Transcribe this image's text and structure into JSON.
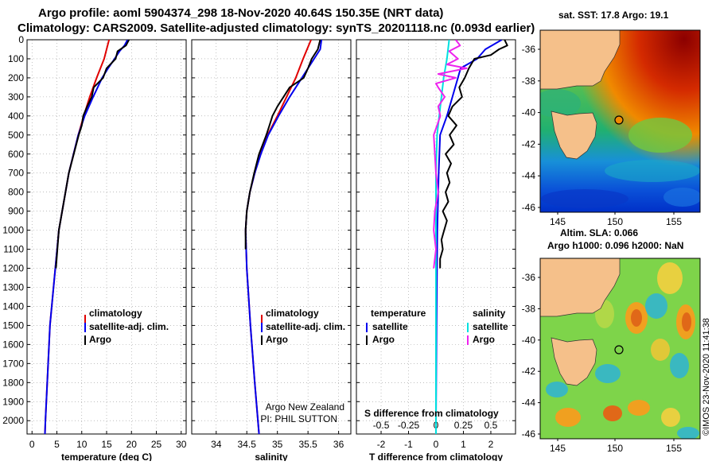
{
  "header": {
    "title_line1": "Argo profile: aoml 5904374_298 18-Nov-2020 40.64S 150.35E (NRT data)",
    "title_line2": "Climatology: CARS2009. Satellite-adjusted climatology: synTS_20201118.nc (0.093d earlier)"
  },
  "colors": {
    "argo": "#000000",
    "climatology": "#e00000",
    "satellite": "#0000ee",
    "satellite_salinity": "#00e0e0",
    "argo_salinity": "#ee22ee",
    "land": "#f5c08a"
  },
  "depth_ticks": [
    "0",
    "100",
    "200",
    "300",
    "400",
    "500",
    "600",
    "700",
    "800",
    "900",
    "1000",
    "1100",
    "1200",
    "1300",
    "1400",
    "1500",
    "1600",
    "1700",
    "1800",
    "1900",
    "2000"
  ],
  "chart_data": [
    {
      "type": "line",
      "title": "Temperature profile",
      "xlabel": "temperature (deg C)",
      "ylabel": "depth",
      "xlim": [
        -1,
        31
      ],
      "ylim": [
        2070,
        0
      ],
      "x_ticks": [
        "0",
        "5",
        "10",
        "15",
        "20",
        "25",
        "30"
      ],
      "x_tick_values": [
        0,
        5,
        10,
        15,
        20,
        25,
        30
      ],
      "legend": {
        "climatology": "climatology",
        "satellite": "satellite-adj. clim.",
        "argo": "Argo"
      },
      "series": [
        {
          "name": "climatology",
          "depth": [
            0,
            100,
            200,
            300,
            400,
            500,
            700,
            1000,
            1500,
            2000,
            2070
          ],
          "values": [
            15.5,
            14.5,
            13.0,
            11.6,
            10.4,
            9.3,
            7.4,
            5.4,
            3.6,
            2.7,
            2.6
          ]
        },
        {
          "name": "satellite-adj. clim.",
          "depth": [
            0,
            30,
            60,
            100,
            150,
            200,
            300,
            400,
            500,
            700,
            1000,
            1500,
            2000,
            2070
          ],
          "values": [
            19.2,
            18.6,
            17.6,
            16.6,
            15.3,
            14.1,
            12.3,
            10.6,
            9.3,
            7.4,
            5.4,
            3.6,
            2.7,
            2.6
          ]
        },
        {
          "name": "Argo",
          "depth": [
            0,
            30,
            60,
            100,
            150,
            200,
            250,
            300,
            350,
            400,
            450,
            500,
            700,
            1000,
            1200
          ],
          "values": [
            19.5,
            18.9,
            17.2,
            16.8,
            15.0,
            14.3,
            12.4,
            12.0,
            11.1,
            10.3,
            10.0,
            9.4,
            7.4,
            5.4,
            4.8
          ]
        }
      ]
    },
    {
      "type": "line",
      "title": "Salinity profile",
      "xlabel": "salinity",
      "ylabel": "depth",
      "xlim": [
        33.6,
        36.2
      ],
      "ylim": [
        2070,
        0
      ],
      "x_ticks": [
        "34",
        "34.5",
        "35",
        "35.5",
        "36"
      ],
      "x_tick_values": [
        34,
        34.5,
        35,
        35.5,
        36
      ],
      "legend": {
        "climatology": "climatology",
        "satellite": "satellite-adj. clim.",
        "argo": "Argo"
      },
      "credit_line1": "Argo New Zealand",
      "credit_line2": "PI: PHIL SUTTON",
      "series": [
        {
          "name": "climatology",
          "depth": [
            0,
            100,
            200,
            300,
            400,
            500,
            600,
            700,
            800,
            900,
            1000,
            1200,
            1500,
            1800,
            2070
          ],
          "values": [
            35.55,
            35.42,
            35.3,
            35.15,
            35.0,
            34.84,
            34.72,
            34.63,
            34.55,
            34.5,
            34.48,
            34.5,
            34.56,
            34.63,
            34.7
          ]
        },
        {
          "name": "satellite-adj. clim.",
          "depth": [
            0,
            50,
            100,
            200,
            300,
            400,
            500,
            600,
            700,
            800,
            900,
            1000,
            1200,
            1500,
            1800,
            2070
          ],
          "values": [
            35.72,
            35.7,
            35.6,
            35.4,
            35.2,
            35.02,
            34.85,
            34.73,
            34.63,
            34.55,
            34.5,
            34.48,
            34.5,
            34.56,
            34.63,
            34.7
          ]
        },
        {
          "name": "Argo",
          "depth": [
            0,
            50,
            100,
            150,
            200,
            250,
            300,
            350,
            400,
            450,
            500,
            600,
            700,
            800,
            900,
            1000,
            1100
          ],
          "values": [
            35.7,
            35.66,
            35.56,
            35.5,
            35.43,
            35.2,
            35.1,
            35.0,
            34.92,
            34.87,
            34.82,
            34.7,
            34.62,
            34.55,
            34.5,
            34.48,
            34.48
          ]
        }
      ]
    },
    {
      "type": "line",
      "title": "Difference from climatology",
      "xlabel": "T difference from climatology",
      "xlabel_top": "S difference from climatology",
      "ylabel": "depth",
      "xlim": [
        -2.9,
        2.9
      ],
      "ylim": [
        2070,
        0
      ],
      "x_ticks": [
        "-2",
        "-1",
        "0",
        "1",
        "2"
      ],
      "x_tick_values": [
        -2,
        -1,
        0,
        1,
        2
      ],
      "x_ticks_top": [
        "-0.5",
        "-0.25",
        "0",
        "0.25",
        "0.5"
      ],
      "legend": {
        "temperature": "temperature",
        "salinity": "salinity",
        "satellite": "satellite",
        "argo": "Argo"
      },
      "series": [
        {
          "name": "temperature satellite",
          "depth": [
            0,
            50,
            100,
            150,
            200,
            300,
            400,
            500,
            700,
            1000,
            1500,
            2000,
            2070
          ],
          "values": [
            2.4,
            1.8,
            1.5,
            0.9,
            0.8,
            0.6,
            0.4,
            0.15,
            0.1,
            0.05,
            0.02,
            0.0,
            0.0
          ]
        },
        {
          "name": "temperature Argo",
          "depth": [
            0,
            30,
            50,
            80,
            100,
            150,
            200,
            250,
            300,
            350,
            400,
            450,
            500,
            550,
            600,
            650,
            700,
            750,
            800,
            850,
            900,
            950,
            1000,
            1050,
            1100,
            1150,
            1200
          ],
          "values": [
            2.5,
            2.6,
            2.3,
            2.0,
            1.4,
            1.2,
            1.05,
            0.85,
            0.95,
            0.6,
            0.45,
            0.75,
            0.5,
            0.65,
            0.35,
            0.55,
            0.4,
            0.5,
            0.35,
            0.45,
            0.25,
            0.4,
            0.3,
            0.2,
            0.25,
            0.15,
            0.15
          ]
        },
        {
          "name": "salinity satellite",
          "depth": [
            0,
            100,
            200,
            300,
            400,
            500,
            700,
            1000,
            1500,
            2000,
            2070
          ],
          "values": [
            0.12,
            0.1,
            0.07,
            0.05,
            0.03,
            0.01,
            0.0,
            0.0,
            0.0,
            0.0,
            0.0
          ]
        },
        {
          "name": "salinity Argo",
          "depth": [
            0,
            30,
            60,
            100,
            130,
            150,
            180,
            200,
            230,
            250,
            300,
            350,
            400,
            450,
            500,
            600,
            700,
            800,
            900,
            1000,
            1100,
            1200
          ],
          "values": [
            0.18,
            0.22,
            0.12,
            0.2,
            0.1,
            0.28,
            0.02,
            0.18,
            0.0,
            0.02,
            0.08,
            0.02,
            0.04,
            0.01,
            -0.02,
            -0.01,
            0.0,
            0.02,
            -0.01,
            -0.02,
            0.0,
            -0.02
          ]
        }
      ]
    }
  ],
  "maps": [
    {
      "title": "sat. SST: 17.8 Argo: 19.1",
      "lat_ticks": [
        "-36",
        "-38",
        "-40",
        "-42",
        "-44",
        "-46"
      ],
      "lon_ticks": [
        "145",
        "150",
        "155"
      ]
    },
    {
      "title": "Altim. SLA: 0.066",
      "subtitle": "Argo h1000: 0.096 h2000: NaN",
      "lat_ticks": [
        "-36",
        "-38",
        "-40",
        "-42",
        "-44",
        "-46"
      ],
      "lon_ticks": [
        "145",
        "150",
        "155"
      ]
    }
  ],
  "footer": {
    "stamp": "©IMOS 23-Nov-2020 11:41:38"
  }
}
